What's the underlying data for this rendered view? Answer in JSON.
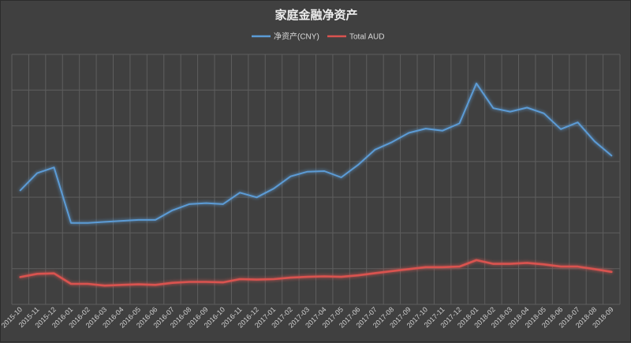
{
  "chart_data": {
    "type": "line",
    "title": "家庭金融净资产",
    "xlabel": "",
    "ylabel": "",
    "legend_position": "top-center",
    "grid": true,
    "y_ticks_visible": false,
    "x_tick_rotation": -45,
    "ylim": [
      0,
      100
    ],
    "categories": [
      "2015-10",
      "2015-11",
      "2015-12",
      "2016-01",
      "2016-02",
      "2016-03",
      "2016-04",
      "2016-05",
      "2016-06",
      "2016-07",
      "2016-08",
      "2016-09",
      "2016-10",
      "2016-11",
      "2016-12",
      "2017-01",
      "2017-02",
      "2017-03",
      "2017-04",
      "2017-05",
      "2017-06",
      "2017-07",
      "2017-08",
      "2017-09",
      "2017-10",
      "2017-11",
      "2017-12",
      "2018-01",
      "2018-02",
      "2018-03",
      "2018-04",
      "2018-05",
      "2018-06",
      "2018-07",
      "2018-08",
      "2018-09"
    ],
    "series": [
      {
        "name": "净资产(CNY)",
        "color": "#5b9bd5",
        "values": [
          45.6,
          52.5,
          54.8,
          32.6,
          32.6,
          33.0,
          33.4,
          33.8,
          33.8,
          37.6,
          40.1,
          40.5,
          40.1,
          44.7,
          42.8,
          46.3,
          51.2,
          53.1,
          53.3,
          50.8,
          55.8,
          61.9,
          64.9,
          68.6,
          70.3,
          69.5,
          72.4,
          88.4,
          78.5,
          77.1,
          78.7,
          76.4,
          70.1,
          72.8,
          65.2,
          59.5
        ]
      },
      {
        "name": "Total AUD",
        "color": "#d9534f",
        "values": [
          10.9,
          12.2,
          12.4,
          8.2,
          8.2,
          7.5,
          7.8,
          8.0,
          7.8,
          8.6,
          9.0,
          9.0,
          8.8,
          10.1,
          9.9,
          10.1,
          10.7,
          11.0,
          11.2,
          11.0,
          11.6,
          12.5,
          13.3,
          14.1,
          14.9,
          14.9,
          15.1,
          17.7,
          16.2,
          16.2,
          16.6,
          16.0,
          15.1,
          15.1,
          14.1,
          13.0
        ]
      }
    ]
  }
}
